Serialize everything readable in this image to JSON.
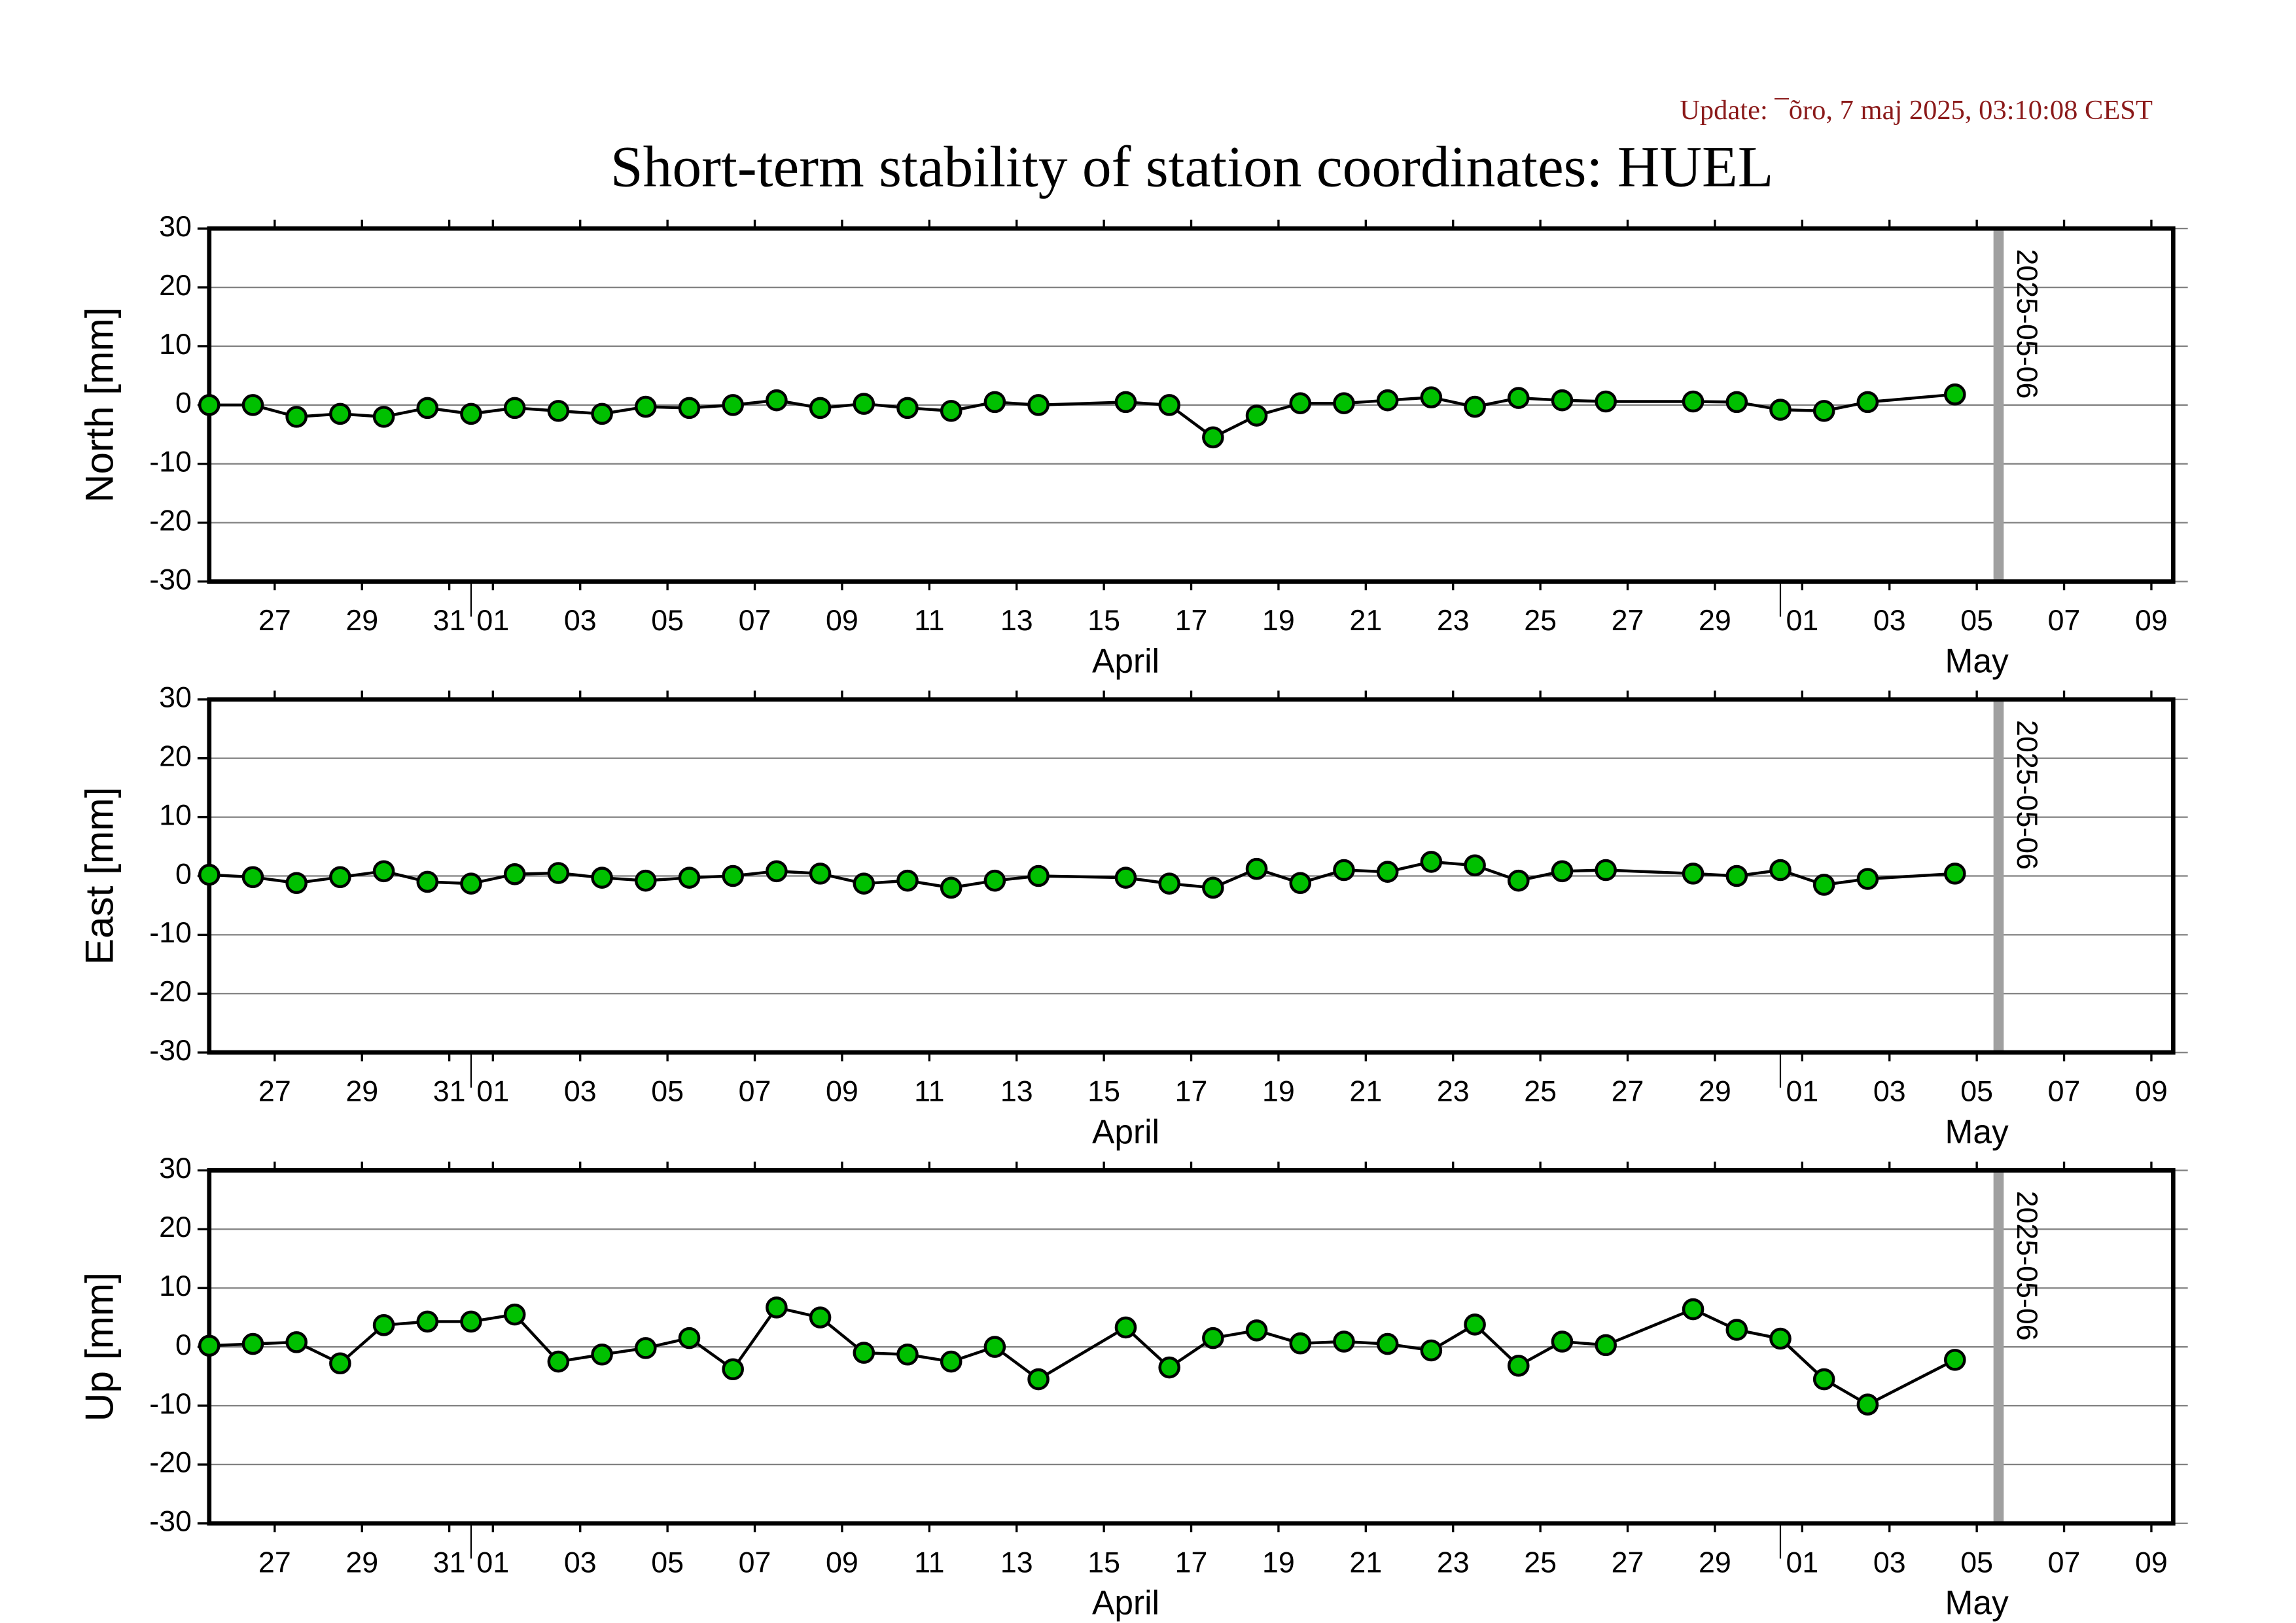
{
  "update": "Update: ¯õro, 7 maj 2025, 03:10:08 CEST",
  "title": "Short-term stability of station coordinates: HUEL",
  "chart_data": [
    {
      "type": "line",
      "ylabel": "North [mm]",
      "color": "#00c000",
      "line_color": "#000000",
      "grid": true,
      "xlim": [
        "2025-03-26",
        "2025-05-10"
      ],
      "ylim": [
        -30,
        30
      ],
      "yticks": [
        -30,
        -20,
        -10,
        0,
        10,
        20,
        30
      ],
      "xticks": [
        {
          "value": "2025-03-27",
          "label": "27"
        },
        {
          "value": "2025-03-29",
          "label": "29"
        },
        {
          "value": "2025-03-31",
          "label": "31"
        },
        {
          "value": "2025-04-01",
          "label": "01"
        },
        {
          "value": "2025-04-03",
          "label": "03"
        },
        {
          "value": "2025-04-05",
          "label": "05"
        },
        {
          "value": "2025-04-07",
          "label": "07"
        },
        {
          "value": "2025-04-09",
          "label": "09"
        },
        {
          "value": "2025-04-11",
          "label": "11"
        },
        {
          "value": "2025-04-13",
          "label": "13"
        },
        {
          "value": "2025-04-15",
          "label": "15"
        },
        {
          "value": "2025-04-17",
          "label": "17"
        },
        {
          "value": "2025-04-19",
          "label": "19"
        },
        {
          "value": "2025-04-21",
          "label": "21"
        },
        {
          "value": "2025-04-23",
          "label": "23"
        },
        {
          "value": "2025-04-25",
          "label": "25"
        },
        {
          "value": "2025-04-27",
          "label": "27"
        },
        {
          "value": "2025-04-29",
          "label": "29"
        },
        {
          "value": "2025-05-01",
          "label": "01"
        },
        {
          "value": "2025-05-03",
          "label": "03"
        },
        {
          "value": "2025-05-05",
          "label": "05"
        },
        {
          "value": "2025-05-07",
          "label": "07"
        },
        {
          "value": "2025-05-09",
          "label": "09"
        }
      ],
      "months": [
        {
          "value": "2025-04",
          "label": "April"
        },
        {
          "value": "2025-05",
          "label": "May"
        }
      ],
      "vline": "2025-05-06",
      "vline_color": "#a0a0a0",
      "x": [
        "2025-03-26",
        "2025-03-27",
        "2025-03-28",
        "2025-03-29",
        "2025-03-30",
        "2025-03-31",
        "2025-04-01",
        "2025-04-02",
        "2025-04-03",
        "2025-04-04",
        "2025-04-05",
        "2025-04-06",
        "2025-04-07",
        "2025-04-08",
        "2025-04-09",
        "2025-04-10",
        "2025-04-11",
        "2025-04-12",
        "2025-04-13",
        "2025-04-14",
        "2025-04-16",
        "2025-04-17",
        "2025-04-18",
        "2025-04-19",
        "2025-04-20",
        "2025-04-21",
        "2025-04-22",
        "2025-04-23",
        "2025-04-24",
        "2025-04-25",
        "2025-04-26",
        "2025-04-27",
        "2025-04-29",
        "2025-04-30",
        "2025-05-01",
        "2025-05-02",
        "2025-05-03",
        "2025-05-05"
      ],
      "values": [
        0,
        0,
        -2,
        -1.5,
        -2,
        -0.5,
        -1.5,
        -0.5,
        -1,
        -1.5,
        -0.3,
        -0.5,
        0,
        0.8,
        -0.5,
        0.2,
        -0.5,
        -1,
        0.5,
        0,
        0.5,
        0,
        -5.5,
        -1.8,
        0.3,
        0.3,
        0.8,
        1.3,
        -0.3,
        1.2,
        0.8,
        0.6,
        0.6,
        0.5,
        -0.8,
        -1,
        0.5,
        1.8
      ]
    },
    {
      "type": "line",
      "ylabel": "East [mm]",
      "color": "#00c000",
      "line_color": "#000000",
      "grid": true,
      "xlim": [
        "2025-03-26",
        "2025-05-10"
      ],
      "ylim": [
        -30,
        30
      ],
      "yticks": [
        -30,
        -20,
        -10,
        0,
        10,
        20,
        30
      ],
      "xticks": [
        {
          "value": "2025-03-27",
          "label": "27"
        },
        {
          "value": "2025-03-29",
          "label": "29"
        },
        {
          "value": "2025-03-31",
          "label": "31"
        },
        {
          "value": "2025-04-01",
          "label": "01"
        },
        {
          "value": "2025-04-03",
          "label": "03"
        },
        {
          "value": "2025-04-05",
          "label": "05"
        },
        {
          "value": "2025-04-07",
          "label": "07"
        },
        {
          "value": "2025-04-09",
          "label": "09"
        },
        {
          "value": "2025-04-11",
          "label": "11"
        },
        {
          "value": "2025-04-13",
          "label": "13"
        },
        {
          "value": "2025-04-15",
          "label": "15"
        },
        {
          "value": "2025-04-17",
          "label": "17"
        },
        {
          "value": "2025-04-19",
          "label": "19"
        },
        {
          "value": "2025-04-21",
          "label": "21"
        },
        {
          "value": "2025-04-23",
          "label": "23"
        },
        {
          "value": "2025-04-25",
          "label": "25"
        },
        {
          "value": "2025-04-27",
          "label": "27"
        },
        {
          "value": "2025-04-29",
          "label": "29"
        },
        {
          "value": "2025-05-01",
          "label": "01"
        },
        {
          "value": "2025-05-03",
          "label": "03"
        },
        {
          "value": "2025-05-05",
          "label": "05"
        },
        {
          "value": "2025-05-07",
          "label": "07"
        },
        {
          "value": "2025-05-09",
          "label": "09"
        }
      ],
      "months": [
        {
          "value": "2025-04",
          "label": "April"
        },
        {
          "value": "2025-05",
          "label": "May"
        }
      ],
      "vline": "2025-05-06",
      "vline_color": "#a0a0a0",
      "x": [
        "2025-03-26",
        "2025-03-27",
        "2025-03-28",
        "2025-03-29",
        "2025-03-30",
        "2025-03-31",
        "2025-04-01",
        "2025-04-02",
        "2025-04-03",
        "2025-04-04",
        "2025-04-05",
        "2025-04-06",
        "2025-04-07",
        "2025-04-08",
        "2025-04-09",
        "2025-04-10",
        "2025-04-11",
        "2025-04-12",
        "2025-04-13",
        "2025-04-14",
        "2025-04-16",
        "2025-04-17",
        "2025-04-18",
        "2025-04-19",
        "2025-04-20",
        "2025-04-21",
        "2025-04-22",
        "2025-04-23",
        "2025-04-24",
        "2025-04-25",
        "2025-04-26",
        "2025-04-27",
        "2025-04-29",
        "2025-04-30",
        "2025-05-01",
        "2025-05-02",
        "2025-05-03",
        "2025-05-05"
      ],
      "values": [
        0.2,
        -0.2,
        -1.2,
        -0.2,
        0.8,
        -1,
        -1.3,
        0.3,
        0.5,
        -0.3,
        -0.8,
        -0.3,
        0,
        0.8,
        0.4,
        -1.3,
        -0.8,
        -2,
        -0.8,
        0,
        -0.3,
        -1.3,
        -2,
        1.2,
        -1.2,
        1,
        0.7,
        2.4,
        1.8,
        -0.8,
        0.8,
        1,
        0.4,
        0,
        1,
        -1.5,
        -0.5,
        0.4
      ]
    },
    {
      "type": "line",
      "ylabel": "Up [mm]",
      "color": "#00c000",
      "line_color": "#000000",
      "grid": true,
      "xlim": [
        "2025-03-26",
        "2025-05-10"
      ],
      "ylim": [
        -30,
        30
      ],
      "yticks": [
        -30,
        -20,
        -10,
        0,
        10,
        20,
        30
      ],
      "xticks": [
        {
          "value": "2025-03-27",
          "label": "27"
        },
        {
          "value": "2025-03-29",
          "label": "29"
        },
        {
          "value": "2025-03-31",
          "label": "31"
        },
        {
          "value": "2025-04-01",
          "label": "01"
        },
        {
          "value": "2025-04-03",
          "label": "03"
        },
        {
          "value": "2025-04-05",
          "label": "05"
        },
        {
          "value": "2025-04-07",
          "label": "07"
        },
        {
          "value": "2025-04-09",
          "label": "09"
        },
        {
          "value": "2025-04-11",
          "label": "11"
        },
        {
          "value": "2025-04-13",
          "label": "13"
        },
        {
          "value": "2025-04-15",
          "label": "15"
        },
        {
          "value": "2025-04-17",
          "label": "17"
        },
        {
          "value": "2025-04-19",
          "label": "19"
        },
        {
          "value": "2025-04-21",
          "label": "21"
        },
        {
          "value": "2025-04-23",
          "label": "23"
        },
        {
          "value": "2025-04-25",
          "label": "25"
        },
        {
          "value": "2025-04-27",
          "label": "27"
        },
        {
          "value": "2025-04-29",
          "label": "29"
        },
        {
          "value": "2025-05-01",
          "label": "01"
        },
        {
          "value": "2025-05-03",
          "label": "03"
        },
        {
          "value": "2025-05-05",
          "label": "05"
        },
        {
          "value": "2025-05-07",
          "label": "07"
        },
        {
          "value": "2025-05-09",
          "label": "09"
        }
      ],
      "months": [
        {
          "value": "2025-04",
          "label": "April"
        },
        {
          "value": "2025-05",
          "label": "May"
        }
      ],
      "vline": "2025-05-06",
      "vline_color": "#a0a0a0",
      "x": [
        "2025-03-26",
        "2025-03-27",
        "2025-03-28",
        "2025-03-29",
        "2025-03-30",
        "2025-03-31",
        "2025-04-01",
        "2025-04-02",
        "2025-04-03",
        "2025-04-04",
        "2025-04-05",
        "2025-04-06",
        "2025-04-07",
        "2025-04-08",
        "2025-04-09",
        "2025-04-10",
        "2025-04-11",
        "2025-04-12",
        "2025-04-13",
        "2025-04-14",
        "2025-04-16",
        "2025-04-17",
        "2025-04-18",
        "2025-04-19",
        "2025-04-20",
        "2025-04-21",
        "2025-04-22",
        "2025-04-23",
        "2025-04-24",
        "2025-04-25",
        "2025-04-26",
        "2025-04-27",
        "2025-04-29",
        "2025-04-30",
        "2025-05-01",
        "2025-05-02",
        "2025-05-03",
        "2025-05-05"
      ],
      "values": [
        0.2,
        0.5,
        0.8,
        -2.8,
        3.7,
        4.3,
        4.3,
        5.5,
        -2.5,
        -1.3,
        -0.2,
        1.5,
        -3.8,
        6.7,
        5,
        -1,
        -1.3,
        -2.5,
        0,
        -5.5,
        3.3,
        -3.5,
        1.5,
        2.8,
        0.6,
        0.9,
        0.5,
        -0.6,
        3.8,
        -3.2,
        0.9,
        0.3,
        6.4,
        2.9,
        1.4,
        -5.5,
        -9.8,
        -2.2
      ]
    }
  ]
}
